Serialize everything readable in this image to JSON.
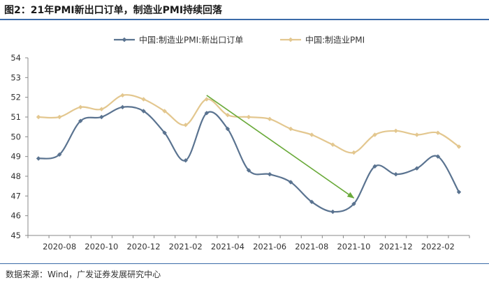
{
  "figure": {
    "title": "图2：21年PMI新出口订单，制造业PMI持续回落",
    "source": "数据来源：Wind，广发证券发展研究中心"
  },
  "chart_data": {
    "type": "line",
    "x": [
      "2020-07",
      "2020-08",
      "2020-09",
      "2020-10",
      "2020-11",
      "2020-12",
      "2021-01",
      "2021-02",
      "2021-03",
      "2021-04",
      "2021-05",
      "2021-06",
      "2021-07",
      "2021-08",
      "2021-09",
      "2021-10",
      "2021-11",
      "2021-12",
      "2022-01",
      "2022-02",
      "2022-03"
    ],
    "x_tick_labels": [
      "2020-08",
      "2020-10",
      "2020-12",
      "2021-02",
      "2021-04",
      "2021-06",
      "2021-08",
      "2021-10",
      "2021-12",
      "2022-02"
    ],
    "series": [
      {
        "name": "中国:制造业PMI:新出口订单",
        "color": "#5a7390",
        "marker": "diamond",
        "values": [
          48.9,
          49.1,
          50.8,
          51.0,
          51.5,
          51.3,
          50.2,
          48.8,
          51.2,
          50.4,
          48.3,
          48.1,
          47.7,
          46.7,
          46.2,
          46.6,
          48.5,
          48.1,
          48.4,
          49.0,
          47.2
        ]
      },
      {
        "name": "中国:制造业PMI",
        "color": "#e3c78f",
        "marker": "diamond",
        "values": [
          51.0,
          51.0,
          51.5,
          51.4,
          52.1,
          51.9,
          51.3,
          50.6,
          51.9,
          51.1,
          51.0,
          50.9,
          50.4,
          50.1,
          49.6,
          49.2,
          50.1,
          50.3,
          50.1,
          50.2,
          49.5
        ]
      }
    ],
    "ylim": [
      45,
      54
    ],
    "yticks": [
      45,
      46,
      47,
      48,
      49,
      50,
      51,
      52,
      53,
      54
    ],
    "legend_position": "top-center",
    "grid": false,
    "annotation": {
      "type": "arrow",
      "color": "#6aaa3a",
      "from": {
        "x": "2021-03",
        "y": 52.1
      },
      "to": {
        "x": "2021-10",
        "y": 46.9
      }
    }
  }
}
